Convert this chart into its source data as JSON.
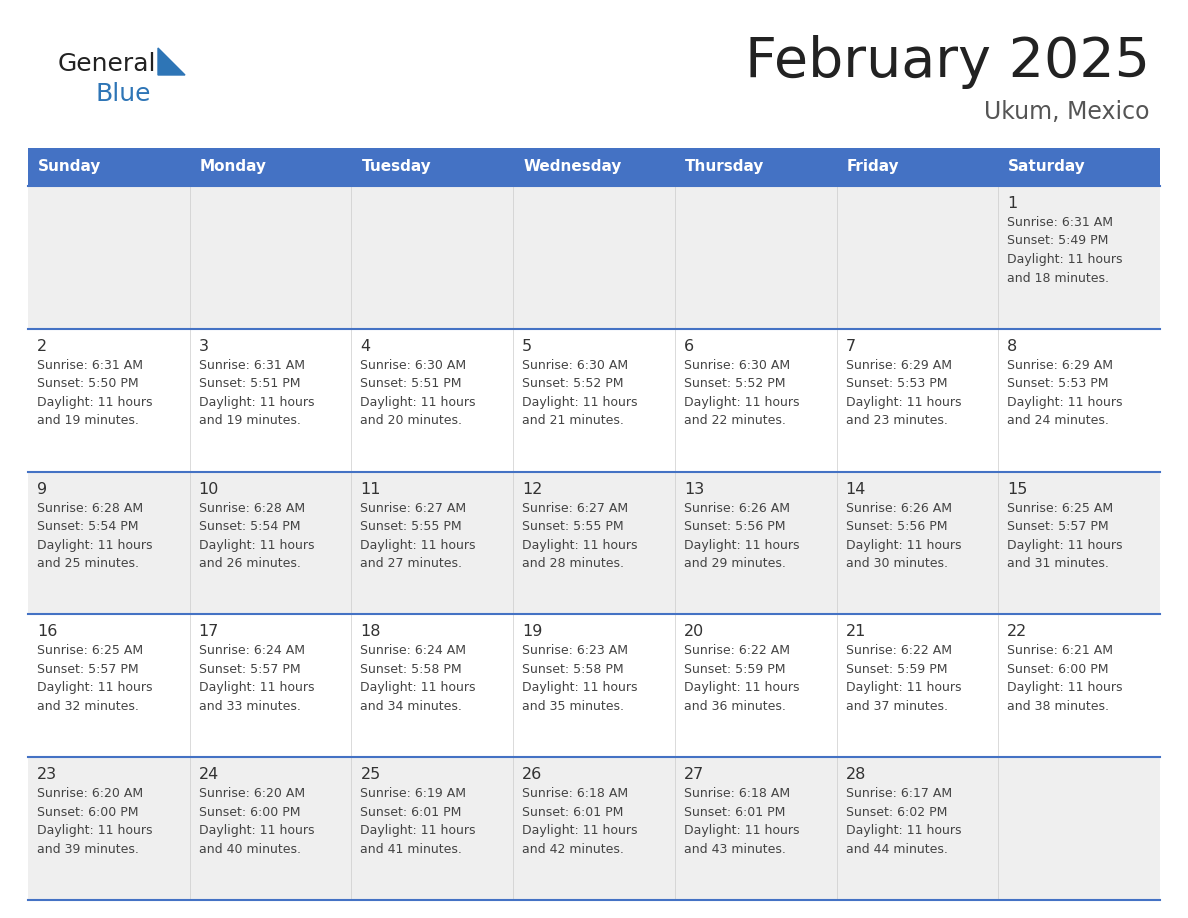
{
  "title": "February 2025",
  "subtitle": "Ukum, Mexico",
  "header_bg": "#4472C4",
  "header_text_color": "#FFFFFF",
  "day_names": [
    "Sunday",
    "Monday",
    "Tuesday",
    "Wednesday",
    "Thursday",
    "Friday",
    "Saturday"
  ],
  "cell_bg_light": "#EFEFEF",
  "cell_bg_white": "#FFFFFF",
  "cell_border_color": "#4472C4",
  "text_color": "#444444",
  "day_num_color": "#333333",
  "logo_text_color": "#222222",
  "logo_blue_color": "#2E75B6",
  "triangle_color": "#2E75B6",
  "title_color": "#222222",
  "subtitle_color": "#555555",
  "calendar": [
    [
      {
        "day": "",
        "info": ""
      },
      {
        "day": "",
        "info": ""
      },
      {
        "day": "",
        "info": ""
      },
      {
        "day": "",
        "info": ""
      },
      {
        "day": "",
        "info": ""
      },
      {
        "day": "",
        "info": ""
      },
      {
        "day": "1",
        "info": "Sunrise: 6:31 AM\nSunset: 5:49 PM\nDaylight: 11 hours\nand 18 minutes."
      }
    ],
    [
      {
        "day": "2",
        "info": "Sunrise: 6:31 AM\nSunset: 5:50 PM\nDaylight: 11 hours\nand 19 minutes."
      },
      {
        "day": "3",
        "info": "Sunrise: 6:31 AM\nSunset: 5:51 PM\nDaylight: 11 hours\nand 19 minutes."
      },
      {
        "day": "4",
        "info": "Sunrise: 6:30 AM\nSunset: 5:51 PM\nDaylight: 11 hours\nand 20 minutes."
      },
      {
        "day": "5",
        "info": "Sunrise: 6:30 AM\nSunset: 5:52 PM\nDaylight: 11 hours\nand 21 minutes."
      },
      {
        "day": "6",
        "info": "Sunrise: 6:30 AM\nSunset: 5:52 PM\nDaylight: 11 hours\nand 22 minutes."
      },
      {
        "day": "7",
        "info": "Sunrise: 6:29 AM\nSunset: 5:53 PM\nDaylight: 11 hours\nand 23 minutes."
      },
      {
        "day": "8",
        "info": "Sunrise: 6:29 AM\nSunset: 5:53 PM\nDaylight: 11 hours\nand 24 minutes."
      }
    ],
    [
      {
        "day": "9",
        "info": "Sunrise: 6:28 AM\nSunset: 5:54 PM\nDaylight: 11 hours\nand 25 minutes."
      },
      {
        "day": "10",
        "info": "Sunrise: 6:28 AM\nSunset: 5:54 PM\nDaylight: 11 hours\nand 26 minutes."
      },
      {
        "day": "11",
        "info": "Sunrise: 6:27 AM\nSunset: 5:55 PM\nDaylight: 11 hours\nand 27 minutes."
      },
      {
        "day": "12",
        "info": "Sunrise: 6:27 AM\nSunset: 5:55 PM\nDaylight: 11 hours\nand 28 minutes."
      },
      {
        "day": "13",
        "info": "Sunrise: 6:26 AM\nSunset: 5:56 PM\nDaylight: 11 hours\nand 29 minutes."
      },
      {
        "day": "14",
        "info": "Sunrise: 6:26 AM\nSunset: 5:56 PM\nDaylight: 11 hours\nand 30 minutes."
      },
      {
        "day": "15",
        "info": "Sunrise: 6:25 AM\nSunset: 5:57 PM\nDaylight: 11 hours\nand 31 minutes."
      }
    ],
    [
      {
        "day": "16",
        "info": "Sunrise: 6:25 AM\nSunset: 5:57 PM\nDaylight: 11 hours\nand 32 minutes."
      },
      {
        "day": "17",
        "info": "Sunrise: 6:24 AM\nSunset: 5:57 PM\nDaylight: 11 hours\nand 33 minutes."
      },
      {
        "day": "18",
        "info": "Sunrise: 6:24 AM\nSunset: 5:58 PM\nDaylight: 11 hours\nand 34 minutes."
      },
      {
        "day": "19",
        "info": "Sunrise: 6:23 AM\nSunset: 5:58 PM\nDaylight: 11 hours\nand 35 minutes."
      },
      {
        "day": "20",
        "info": "Sunrise: 6:22 AM\nSunset: 5:59 PM\nDaylight: 11 hours\nand 36 minutes."
      },
      {
        "day": "21",
        "info": "Sunrise: 6:22 AM\nSunset: 5:59 PM\nDaylight: 11 hours\nand 37 minutes."
      },
      {
        "day": "22",
        "info": "Sunrise: 6:21 AM\nSunset: 6:00 PM\nDaylight: 11 hours\nand 38 minutes."
      }
    ],
    [
      {
        "day": "23",
        "info": "Sunrise: 6:20 AM\nSunset: 6:00 PM\nDaylight: 11 hours\nand 39 minutes."
      },
      {
        "day": "24",
        "info": "Sunrise: 6:20 AM\nSunset: 6:00 PM\nDaylight: 11 hours\nand 40 minutes."
      },
      {
        "day": "25",
        "info": "Sunrise: 6:19 AM\nSunset: 6:01 PM\nDaylight: 11 hours\nand 41 minutes."
      },
      {
        "day": "26",
        "info": "Sunrise: 6:18 AM\nSunset: 6:01 PM\nDaylight: 11 hours\nand 42 minutes."
      },
      {
        "day": "27",
        "info": "Sunrise: 6:18 AM\nSunset: 6:01 PM\nDaylight: 11 hours\nand 43 minutes."
      },
      {
        "day": "28",
        "info": "Sunrise: 6:17 AM\nSunset: 6:02 PM\nDaylight: 11 hours\nand 44 minutes."
      },
      {
        "day": "",
        "info": ""
      }
    ]
  ]
}
